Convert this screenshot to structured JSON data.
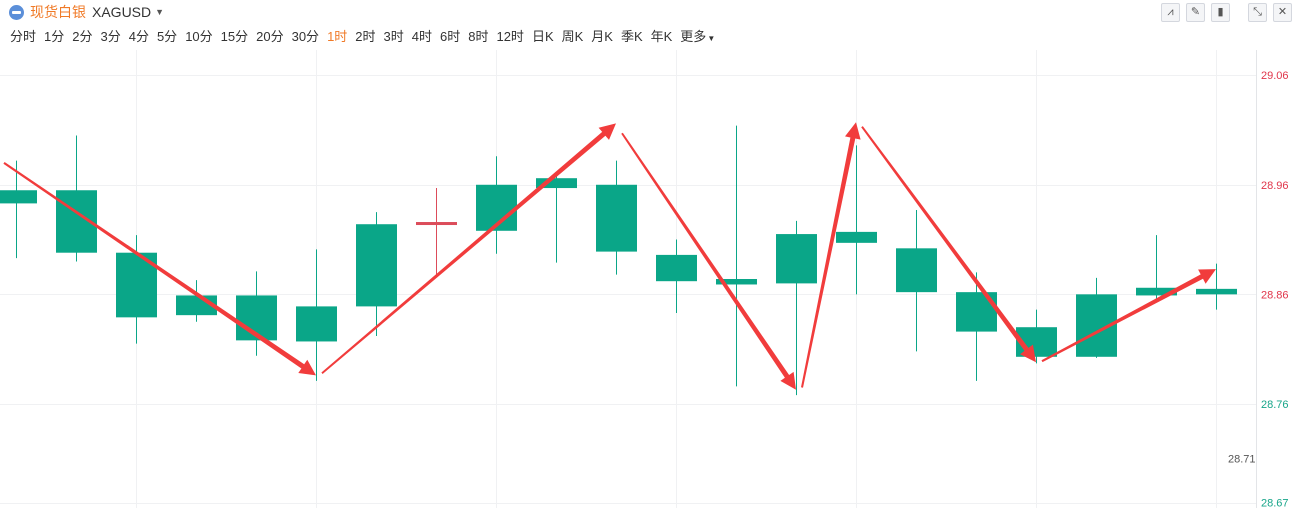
{
  "header": {
    "symbol_name": "现货白银",
    "symbol_code": "XAGUSD",
    "logo_icon": "silver-coin-icon",
    "caret_icon": "caret-down-icon",
    "tools": [
      {
        "name": "indicator-tool-button",
        "icon": "line-indicator-icon",
        "glyph": "⩘"
      },
      {
        "name": "draw-tool-button",
        "icon": "pencil-icon",
        "glyph": "✎"
      },
      {
        "name": "candle-style-button",
        "icon": "candlestick-icon",
        "glyph": "▮"
      },
      {
        "name": "fullscreen-button",
        "icon": "expand-icon",
        "glyph": "⤡"
      },
      {
        "name": "close-button",
        "icon": "close-icon",
        "glyph": "✕"
      }
    ]
  },
  "periods": {
    "items": [
      "分时",
      "1分",
      "2分",
      "3分",
      "4分",
      "5分",
      "10分",
      "15分",
      "20分",
      "30分",
      "1时",
      "2时",
      "3时",
      "4时",
      "6时",
      "8时",
      "12时",
      "日K",
      "周K",
      "月K",
      "季K",
      "年K"
    ],
    "active": "1时",
    "more_label": "更多"
  },
  "colors": {
    "up": "#dc4c5a",
    "down": "#0aa688",
    "arrow": "#f13c3c",
    "grid": "#f0f1f3",
    "axis_up_text": "#e0354a",
    "axis_down_text": "#17a589",
    "axis_neutral_text": "#555555"
  },
  "chart_data": {
    "type": "candlestick",
    "y_axis": {
      "position": "right",
      "ticks": [
        {
          "value": 29.06,
          "label": "29.06",
          "tone": "up"
        },
        {
          "value": 28.96,
          "label": "28.96",
          "tone": "up"
        },
        {
          "value": 28.86,
          "label": "28.86",
          "tone": "up"
        },
        {
          "value": 28.76,
          "label": "28.76",
          "tone": "down"
        },
        {
          "value": 28.67,
          "label": "28.67",
          "tone": "down"
        }
      ],
      "range": [
        28.665,
        29.083
      ],
      "min_label": {
        "value": 28.71,
        "label": "28.71"
      }
    },
    "grid": true,
    "candles": [
      {
        "open": 28.955,
        "close": 28.943,
        "high": 28.982,
        "low": 28.893
      },
      {
        "open": 28.955,
        "close": 28.898,
        "high": 29.005,
        "low": 28.89
      },
      {
        "open": 28.898,
        "close": 28.839,
        "high": 28.914,
        "low": 28.815
      },
      {
        "open": 28.859,
        "close": 28.841,
        "high": 28.873,
        "low": 28.835
      },
      {
        "open": 28.859,
        "close": 28.818,
        "high": 28.881,
        "low": 28.804
      },
      {
        "open": 28.849,
        "close": 28.817,
        "high": 28.901,
        "low": 28.781
      },
      {
        "open": 28.924,
        "close": 28.849,
        "high": 28.935,
        "low": 28.822
      },
      {
        "open": 28.926,
        "close": 28.926,
        "high": 28.957,
        "low": 28.878
      },
      {
        "open": 28.96,
        "close": 28.918,
        "high": 28.986,
        "low": 28.897
      },
      {
        "open": 28.966,
        "close": 28.957,
        "high": 28.971,
        "low": 28.889
      },
      {
        "open": 28.96,
        "close": 28.899,
        "high": 28.982,
        "low": 28.878
      },
      {
        "open": 28.896,
        "close": 28.872,
        "high": 28.91,
        "low": 28.843
      },
      {
        "open": 28.874,
        "close": 28.869,
        "high": 29.014,
        "low": 28.776
      },
      {
        "open": 28.915,
        "close": 28.87,
        "high": 28.927,
        "low": 28.768
      },
      {
        "open": 28.917,
        "close": 28.907,
        "high": 28.996,
        "low": 28.86
      },
      {
        "open": 28.902,
        "close": 28.862,
        "high": 28.937,
        "low": 28.808
      },
      {
        "open": 28.862,
        "close": 28.826,
        "high": 28.88,
        "low": 28.781
      },
      {
        "open": 28.83,
        "close": 28.803,
        "high": 28.846,
        "low": 28.797
      },
      {
        "open": 28.86,
        "close": 28.803,
        "high": 28.875,
        "low": 28.802
      },
      {
        "open": 28.866,
        "close": 28.859,
        "high": 28.914,
        "low": 28.856
      },
      {
        "open": 28.865,
        "close": 28.86,
        "high": 28.888,
        "low": 28.846
      }
    ],
    "annotations": {
      "type": "zigzag-arrows",
      "segments": [
        {
          "from": {
            "candle": -0.2,
            "value": 28.98
          },
          "to": {
            "candle": 5.0,
            "value": 28.786
          },
          "bold": true
        },
        {
          "from": {
            "candle": 5.1,
            "value": 28.788
          },
          "to": {
            "candle": 10.0,
            "value": 29.016
          },
          "bold": true
        },
        {
          "from": {
            "candle": 10.1,
            "value": 29.007
          },
          "to": {
            "candle": 13.0,
            "value": 28.773
          },
          "bold": true
        },
        {
          "from": {
            "candle": 13.1,
            "value": 28.775
          },
          "to": {
            "candle": 14.0,
            "value": 29.017
          },
          "bold": true
        },
        {
          "from": {
            "candle": 14.1,
            "value": 29.013
          },
          "to": {
            "candle": 17.0,
            "value": 28.798
          },
          "bold": true
        },
        {
          "from": {
            "candle": 17.1,
            "value": 28.799
          },
          "to": {
            "candle": 20.0,
            "value": 28.883
          },
          "bold": true
        }
      ]
    }
  }
}
